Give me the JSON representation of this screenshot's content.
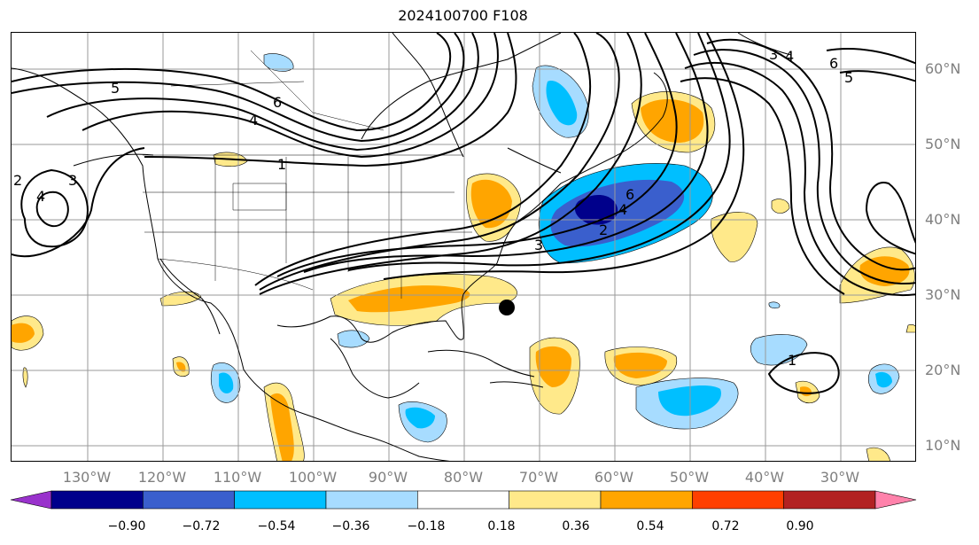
{
  "title": "2024100700 F108",
  "latitudes": [
    "60°N",
    "50°N",
    "40°N",
    "30°N",
    "20°N",
    "10°N"
  ],
  "longitudes": [
    "130°W",
    "120°W",
    "110°W",
    "100°W",
    "90°W",
    "80°W",
    "70°W",
    "60°W",
    "50°W",
    "40°W",
    "30°W"
  ],
  "colorbar": {
    "labels": [
      "−0.90",
      "−0.72",
      "−0.54",
      "−0.36",
      "−0.18",
      "0.18",
      "0.36",
      "0.54",
      "0.72",
      "0.90"
    ],
    "colors": [
      "#9932cc",
      "#00008b",
      "#3a5fcd",
      "#00bfff",
      "#a7dcff",
      "#ffffff",
      "#ffe98a",
      "#ffa500",
      "#ff3f00",
      "#b22222",
      "#ff82ab"
    ]
  },
  "contour_labels": [
    "5",
    "4",
    "6",
    "1",
    "2",
    "3",
    "4",
    "3",
    "2",
    "4",
    "6",
    "3",
    "4",
    "6",
    "5",
    "1"
  ],
  "marker": "black-dot"
}
